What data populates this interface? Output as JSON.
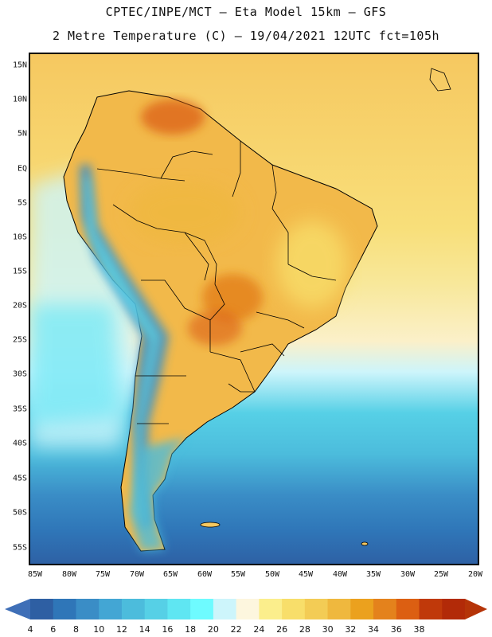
{
  "header": {
    "line1": "CPTEC/INPE/MCT –  Eta Model 15km – GFS",
    "line2": "2 Metre Temperature (C) – 19/04/2021 12UTC fct=105h"
  },
  "map": {
    "lat_ticks": [
      "15N",
      "10N",
      "5N",
      "EQ",
      "5S",
      "10S",
      "15S",
      "20S",
      "25S",
      "30S",
      "35S",
      "40S",
      "45S",
      "50S",
      "55S"
    ],
    "lon_ticks": [
      "85W",
      "80W",
      "75W",
      "70W",
      "65W",
      "60W",
      "55W",
      "50W",
      "45W",
      "40W",
      "35W",
      "30W",
      "25W",
      "20W"
    ]
  },
  "legend": {
    "levels": [
      "4",
      "6",
      "8",
      "10",
      "12",
      "14",
      "16",
      "18",
      "20",
      "22",
      "24",
      "26",
      "28",
      "30",
      "32",
      "34",
      "36",
      "38"
    ],
    "colors": [
      "#2e5fa3",
      "#2f76b8",
      "#3a8dc6",
      "#43a6d4",
      "#4cbcdc",
      "#56d0e6",
      "#5fe6f2",
      "#6efbff",
      "#cdf5fb",
      "#fdf6de",
      "#fbee8c",
      "#f8de6a",
      "#f3cc55",
      "#efb83e",
      "#eba11e",
      "#e4821c",
      "#dc5f12",
      "#c0390a",
      "#b22a08"
    ],
    "under_color": "#3f6fb7",
    "over_color": "#b53408"
  }
}
